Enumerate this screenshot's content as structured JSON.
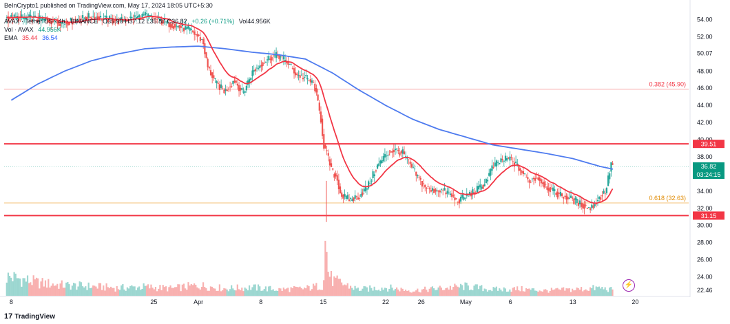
{
  "publisher_line": "BeInCrypto1 published on TradingView.com, May 17, 2024 18:05 UTC+5:30",
  "legend": {
    "symbol": "AVAX · Tether US · 4h · BINANCE",
    "ohlc": "O35.90 H37.12 L35.80 C36.82",
    "change": "+0.26 (+0.71%)",
    "volume": "Vol44.956K",
    "vol_label": "Vol · AVAX",
    "vol_value": "44.956K",
    "ema_label": "EMA",
    "ema_fast": "35.44",
    "ema_slow": "36.54"
  },
  "price_box": {
    "price": "36.82",
    "countdown": "03:24:15"
  },
  "branding": "TradingView",
  "colors": {
    "up": "#26a69a",
    "down": "#ef5350",
    "ema_fast": "#f23645",
    "ema_slow": "#4e7bef",
    "level": "#f23645",
    "fib_382": "#f7a1a1",
    "fib_618": "#f6c177",
    "price_box": "#089981"
  },
  "chart_data": {
    "type": "candlestick",
    "title": "",
    "xlabel": "",
    "ylabel": "",
    "ylim": [
      21.8,
      55.0
    ],
    "y_ticks": [
      54.0,
      52.0,
      50.07,
      48.0,
      46.0,
      44.0,
      42.0,
      40.0,
      38.0,
      36.0,
      34.0,
      32.0,
      30.0,
      28.0,
      26.0,
      24.0,
      22.46
    ],
    "x_ticks": [
      "8",
      "25",
      "Apr",
      "8",
      "15",
      "22",
      "26",
      "May",
      "6",
      "13",
      "20"
    ],
    "x_tick_days": [
      -6,
      10,
      15,
      22,
      29,
      36,
      40,
      45,
      50,
      57,
      64
    ],
    "date_range": [
      "2024-03-08",
      "2024-05-17"
    ],
    "price_path": [
      [
        -4,
        54.2
      ],
      [
        0,
        53.6
      ],
      [
        3,
        54.4
      ],
      [
        6,
        53.8
      ],
      [
        9,
        54.5
      ],
      [
        12,
        53.4
      ],
      [
        14,
        52.8
      ],
      [
        15.5,
        51.5
      ],
      [
        16,
        48.5
      ],
      [
        17,
        46.5
      ],
      [
        18,
        45.6
      ],
      [
        19,
        47.0
      ],
      [
        20,
        45.4
      ],
      [
        21,
        47.8
      ],
      [
        22,
        48.8
      ],
      [
        23,
        49.6
      ],
      [
        24,
        49.8
      ],
      [
        25,
        49.0
      ],
      [
        26,
        47.6
      ],
      [
        27,
        47.2
      ],
      [
        28,
        46.4
      ],
      [
        28.8,
        42.0
      ],
      [
        29,
        39.5
      ],
      [
        29.5,
        38.0
      ],
      [
        30,
        36.2
      ],
      [
        30.5,
        35.6
      ],
      [
        31,
        33.5
      ],
      [
        32,
        33.0
      ],
      [
        33,
        33.4
      ],
      [
        34,
        34.6
      ],
      [
        35,
        36.8
      ],
      [
        36,
        38.2
      ],
      [
        37,
        38.8
      ],
      [
        38,
        38.4
      ],
      [
        39,
        36.6
      ],
      [
        40,
        35.0
      ],
      [
        41,
        34.0
      ],
      [
        42,
        34.2
      ],
      [
        43,
        33.8
      ],
      [
        44,
        32.8
      ],
      [
        45,
        33.4
      ],
      [
        46,
        34.0
      ],
      [
        47,
        34.7
      ],
      [
        48,
        36.8
      ],
      [
        49,
        37.6
      ],
      [
        50,
        37.8
      ],
      [
        51,
        36.6
      ],
      [
        52,
        35.2
      ],
      [
        53,
        35.6
      ],
      [
        54,
        34.6
      ],
      [
        55,
        33.8
      ],
      [
        56,
        33.4
      ],
      [
        57,
        33.0
      ],
      [
        58,
        32.4
      ],
      [
        59,
        32.0
      ],
      [
        60,
        33.2
      ],
      [
        60.7,
        34.0
      ],
      [
        61.3,
        37.2
      ],
      [
        61.6,
        36.82
      ]
    ],
    "volume_path": [
      [
        -6,
        0.36
      ],
      [
        -3,
        0.25
      ],
      [
        0,
        0.2
      ],
      [
        3,
        0.18
      ],
      [
        6,
        0.15
      ],
      [
        9,
        0.17
      ],
      [
        12,
        0.14
      ],
      [
        15,
        0.2
      ],
      [
        18,
        0.14
      ],
      [
        21,
        0.16
      ],
      [
        24,
        0.12
      ],
      [
        27,
        0.14
      ],
      [
        29,
        0.2
      ],
      [
        29.3,
        1.0
      ],
      [
        29.6,
        0.45
      ],
      [
        30,
        0.3
      ],
      [
        33,
        0.12
      ],
      [
        36,
        0.16
      ],
      [
        39,
        0.1
      ],
      [
        42,
        0.14
      ],
      [
        45,
        0.18
      ],
      [
        48,
        0.12
      ],
      [
        51,
        0.13
      ],
      [
        54,
        0.1
      ],
      [
        57,
        0.12
      ],
      [
        60,
        0.15
      ],
      [
        62,
        0.1
      ]
    ],
    "series": [
      {
        "name": "EMA",
        "values": [
          [
            -6,
            44.6
          ],
          [
            -3,
            46.5
          ],
          [
            0,
            48.0
          ],
          [
            3,
            49.2
          ],
          [
            6,
            50.0
          ],
          [
            9,
            50.6
          ],
          [
            12,
            50.8
          ],
          [
            15,
            50.9
          ],
          [
            18,
            50.6
          ],
          [
            21,
            50.2
          ],
          [
            24,
            49.9
          ],
          [
            27,
            49.4
          ],
          [
            30,
            47.8
          ],
          [
            33,
            45.8
          ],
          [
            36,
            44.0
          ],
          [
            39,
            42.4
          ],
          [
            42,
            41.2
          ],
          [
            45,
            40.3
          ],
          [
            48,
            39.4
          ],
          [
            51,
            38.9
          ],
          [
            54,
            38.4
          ],
          [
            57,
            37.8
          ],
          [
            60,
            36.9
          ],
          [
            61.6,
            36.54
          ]
        ]
      }
    ],
    "levels": [
      {
        "label": "39.51",
        "value": 39.51,
        "style": "solid"
      },
      {
        "label": "31.15",
        "value": 31.15,
        "style": "solid"
      },
      {
        "label": "0.382 (45.90)",
        "value": 45.9,
        "style": "fib"
      },
      {
        "label": "0.618 (32.63)",
        "value": 32.63,
        "style": "fib"
      }
    ],
    "last_price": 36.82
  }
}
